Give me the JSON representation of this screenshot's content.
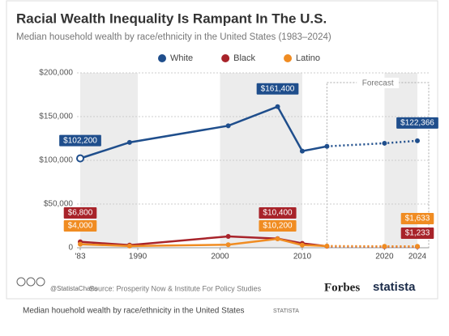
{
  "chart_data": {
    "type": "line",
    "title": "Racial Wealth Inequality Is Rampant In The U.S.",
    "subtitle": "Median household wealth by race/ethnicity in the United States (1983–2024)",
    "x": [
      1983,
      1989,
      2001,
      2007,
      2010,
      2013,
      2020,
      2024
    ],
    "series": [
      {
        "name": "White",
        "color": "#1f4e8c",
        "values": [
          102200,
          120500,
          139500,
          161400,
          110500,
          116000,
          119500,
          122366
        ],
        "value_labels": [
          "$102,200",
          null,
          null,
          "$161,400",
          null,
          null,
          null,
          "$122,366"
        ]
      },
      {
        "name": "Black",
        "color": "#a8232a",
        "values": [
          6800,
          3000,
          13000,
          10400,
          5000,
          1700,
          1300,
          1233
        ],
        "value_labels": [
          "$6,800",
          null,
          null,
          "$10,400",
          null,
          null,
          null,
          "$1,233"
        ]
      },
      {
        "name": "Latino",
        "color": "#f08c22",
        "values": [
          4000,
          2000,
          3500,
          10200,
          3000,
          2000,
          1600,
          1633
        ],
        "value_labels": [
          "$4,000",
          null,
          null,
          "$10,200",
          null,
          null,
          null,
          "$1,633"
        ]
      }
    ],
    "forecast": {
      "label": "Forecast",
      "from": 2013
    },
    "xlim": [
      1983,
      2024
    ],
    "xticks": [
      {
        "value": 1983,
        "label": "'83"
      },
      1990,
      2000,
      2010,
      2020,
      2024
    ],
    "ylim": [
      0,
      200000
    ],
    "yticks": [
      0,
      {
        "value": 50000,
        "label": "$50,000"
      },
      {
        "value": 100000,
        "label": "$100,000"
      },
      {
        "value": 150000,
        "label": "$150,000"
      },
      {
        "value": 200000,
        "label": "$200,000"
      }
    ],
    "grid": true,
    "legend": "top"
  },
  "footer": {
    "handle": "@StatistaCharts",
    "source": "Source: Prosperity Now & Institute For Policy Studies",
    "brand1": "Forbes",
    "brand2": "statista"
  },
  "caption": {
    "text": "Median houehold wealth by race/ethnicity in the United States",
    "tag": "STATISTA"
  }
}
